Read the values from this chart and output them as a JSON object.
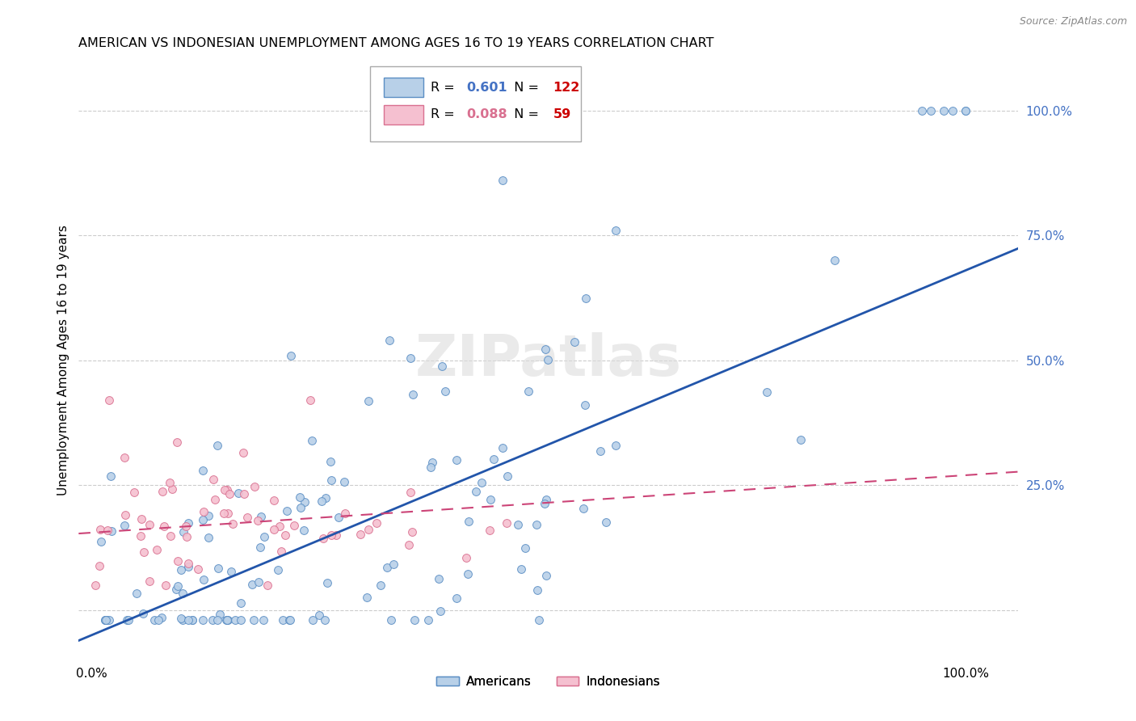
{
  "title": "AMERICAN VS INDONESIAN UNEMPLOYMENT AMONG AGES 16 TO 19 YEARS CORRELATION CHART",
  "source": "Source: ZipAtlas.com",
  "ylabel": "Unemployment Among Ages 16 to 19 years",
  "american_color": "#b8d0e8",
  "american_edge_color": "#5b8ec4",
  "indonesian_color": "#f5c0d0",
  "indonesian_edge_color": "#d97090",
  "american_line_color": "#2255aa",
  "indonesian_line_color": "#cc4477",
  "legend_american_R": "0.601",
  "legend_american_N": "122",
  "legend_indonesian_R": "0.088",
  "legend_indonesian_N": "59",
  "legend_R_color_am": "#4472c4",
  "legend_N_color_am": "#cc0000",
  "legend_R_color_ind": "#d97090",
  "legend_N_color_ind": "#cc0000",
  "watermark": "ZIPatlas",
  "am_slope": 0.73,
  "am_intercept": -0.05,
  "ind_slope": 0.115,
  "ind_intercept": 0.155,
  "ytick_positions": [
    0.0,
    0.25,
    0.5,
    0.75,
    1.0
  ],
  "ytick_labels": [
    "",
    "25.0%",
    "50.0%",
    "75.0%",
    "100.0%"
  ],
  "xtick_positions": [
    0.0,
    1.0
  ],
  "xtick_labels": [
    "0.0%",
    "100.0%"
  ],
  "xlim": [
    -0.015,
    1.06
  ],
  "ylim": [
    -0.1,
    1.1
  ]
}
